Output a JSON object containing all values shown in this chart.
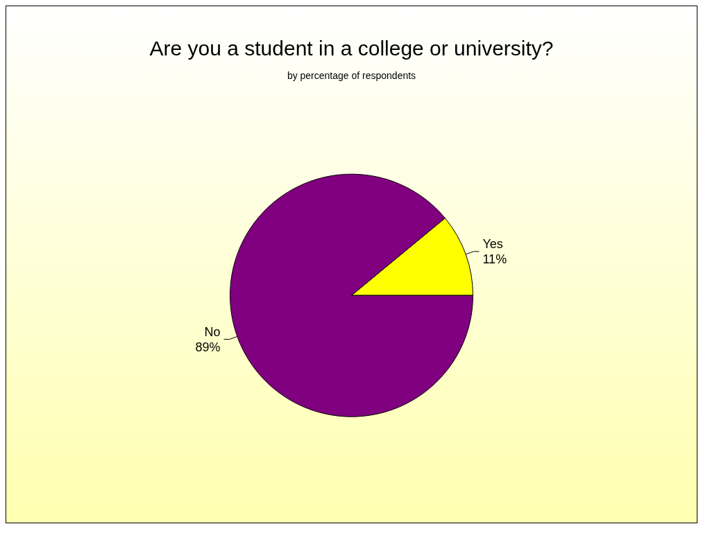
{
  "chart_data": {
    "type": "pie",
    "title": "Are you a student in a college or university?",
    "subtitle": "by percentage of respondents",
    "categories": [
      "Yes",
      "No"
    ],
    "values": [
      11,
      89
    ],
    "colors": [
      "#ffff00",
      "#800080"
    ],
    "value_labels": [
      "11%",
      "89%"
    ],
    "legend": false
  }
}
